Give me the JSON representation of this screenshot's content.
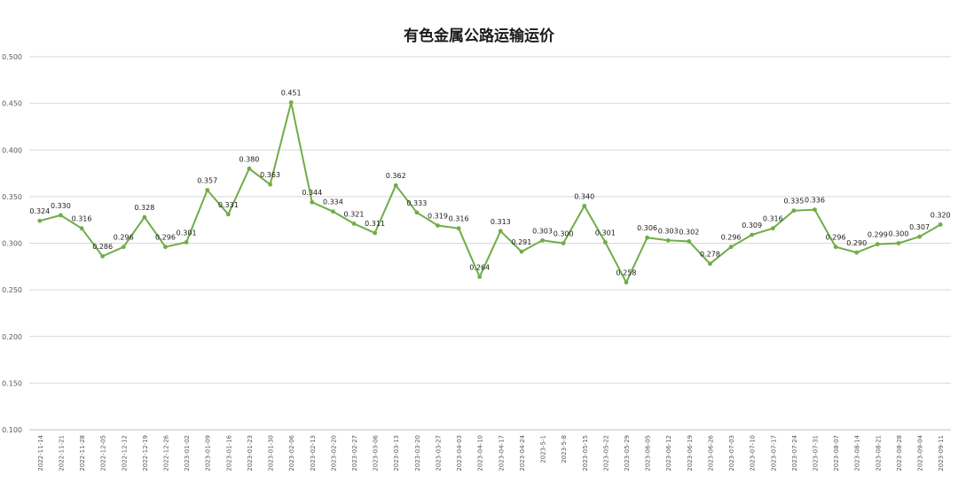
{
  "chart_data": {
    "type": "line",
    "title": "有色金属公路运输运价",
    "xlabel": "",
    "ylabel": "",
    "ylim": [
      0.1,
      0.5
    ],
    "yticks": [
      "0.100",
      "0.150",
      "0.200",
      "0.250",
      "0.300",
      "0.350",
      "0.400",
      "0.450",
      "0.500"
    ],
    "ytick_values": [
      0.1,
      0.15,
      0.2,
      0.25,
      0.3,
      0.35,
      0.4,
      0.45,
      0.5
    ],
    "grid": true,
    "legend": "none",
    "line_color": "#70ad47",
    "categories": [
      "2022-11-14",
      "2022-11-21",
      "2022-11-28",
      "2022-12-05",
      "2022-12-12",
      "2022-12-19",
      "2022-12-26",
      "2023-01-02",
      "2023-01-09",
      "2023-01-16",
      "2023-01-23",
      "2023-01-30",
      "2023-02-06",
      "2023-02-13",
      "2023-02-20",
      "2023-02-27",
      "2023-03-06",
      "2023-03-13",
      "2023-03-20",
      "2023-03-27",
      "2023-04-03",
      "2023-04-10",
      "2023-04-17",
      "2023-04-24",
      "2023-5-1",
      "2023-5-8",
      "2023-05-15",
      "2023-05-22",
      "2023-05-29",
      "2023-06-05",
      "2023-06-12",
      "2023-06-19",
      "2023-06-26",
      "2023-07-03",
      "2023-07-10",
      "2023-07-17",
      "2023-07-24",
      "2023-07-31",
      "2023-08-07",
      "2023-08-14",
      "2023-08-21",
      "2023-08-28",
      "2023-09-04",
      "2023-09-11"
    ],
    "series": [
      {
        "values": [
          0.324,
          0.33,
          0.316,
          0.286,
          0.296,
          0.328,
          0.296,
          0.301,
          0.357,
          0.331,
          0.38,
          0.363,
          0.451,
          0.344,
          0.334,
          0.321,
          0.311,
          0.362,
          0.333,
          0.319,
          0.316,
          0.264,
          0.313,
          0.291,
          0.303,
          0.3,
          0.34,
          0.301,
          0.258,
          0.306,
          0.303,
          0.302,
          0.278,
          0.296,
          0.309,
          0.316,
          0.335,
          0.336,
          0.296,
          0.29,
          0.299,
          0.3,
          0.307,
          0.32
        ],
        "labels": [
          "0.324",
          "0.330",
          "0.316",
          "0.286",
          "0.296",
          "0.328",
          "0.296",
          "0.301",
          "0.357",
          "0.331",
          "0.380",
          "0.363",
          "0.451",
          "0.344",
          "0.334",
          "0.321",
          "0.311",
          "0.362",
          "0.333",
          "0.319",
          "0.316",
          "0.264",
          "0.313",
          "0.291",
          "0.303",
          "0.300",
          "0.340",
          "0.301",
          "0.258",
          "0.306",
          "0.303",
          "0.302",
          "0.278",
          "0.296",
          "0.309",
          "0.316",
          "0.335",
          "0.336",
          "0.296",
          "0.290",
          "0.299",
          "0.300",
          "0.307",
          "0.320"
        ]
      }
    ]
  }
}
